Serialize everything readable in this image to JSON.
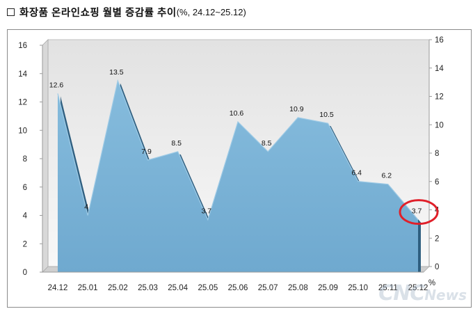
{
  "title": {
    "main": "화장품 온라인쇼핑 월별 증감률 추이",
    "unit": "(%, 24.12~25.12)"
  },
  "chart_data": {
    "type": "area",
    "categories": [
      "24.12",
      "25.01",
      "25.02",
      "25.03",
      "25.04",
      "25.05",
      "25.06",
      "25.07",
      "25.08",
      "25.09",
      "25.10",
      "25.11",
      "25.12"
    ],
    "values": [
      12.6,
      4,
      13.5,
      7.9,
      8.5,
      3.7,
      10.6,
      8.5,
      10.9,
      10.5,
      6.4,
      6.2,
      3.7
    ],
    "value_labels": [
      "12.6",
      "4",
      "13.5",
      "7.9",
      "8.5",
      "3.7",
      "10.6",
      "8.5",
      "10.9",
      "10.5",
      "6.4",
      "6.2",
      "3.7"
    ],
    "ylim": [
      0,
      16
    ],
    "yticks": [
      0,
      2,
      4,
      6,
      8,
      10,
      12,
      14,
      16
    ],
    "secondary_axis": true,
    "x_unit": "%",
    "highlight_index": 12,
    "colors": {
      "area": "#7fb4d6",
      "highlight": "#e0202a",
      "axis": "#999999"
    },
    "grid": false,
    "legend": "none"
  },
  "watermark": {
    "brand": "CNC",
    "suffix": "News"
  }
}
